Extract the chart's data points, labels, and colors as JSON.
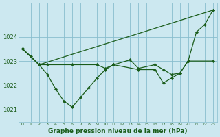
{
  "title": "Graphe pression niveau de la mer (hPa)",
  "background_color": "#cce8f0",
  "grid_color": "#88bece",
  "line_color": "#1a5c1a",
  "xlim": [
    -0.5,
    23.5
  ],
  "ylim": [
    1020.5,
    1025.4
  ],
  "yticks": [
    1021,
    1022,
    1023,
    1024
  ],
  "xticks": [
    0,
    1,
    2,
    3,
    4,
    5,
    6,
    7,
    8,
    9,
    10,
    11,
    12,
    13,
    14,
    15,
    16,
    17,
    18,
    19,
    20,
    21,
    22,
    23
  ],
  "series1_x": [
    0,
    1,
    2,
    23
  ],
  "series1_y": [
    1023.5,
    1023.2,
    1022.85,
    1025.1
  ],
  "series2_x": [
    0,
    2,
    3,
    6,
    9,
    10,
    11,
    13,
    14,
    16,
    17,
    18,
    19,
    20,
    23
  ],
  "series2_y": [
    1023.5,
    1022.85,
    1022.85,
    1022.85,
    1022.85,
    1022.7,
    1022.85,
    1023.05,
    1022.7,
    1022.85,
    1022.65,
    1022.45,
    1022.5,
    1023.0,
    1023.0
  ],
  "series3_x": [
    0,
    2,
    3,
    4,
    5,
    6,
    7,
    8,
    9,
    10,
    11,
    14,
    16,
    17,
    18,
    19,
    20,
    21,
    22,
    23
  ],
  "series3_y": [
    1023.5,
    1022.85,
    1022.45,
    1021.85,
    1021.35,
    1021.1,
    1021.5,
    1021.9,
    1022.3,
    1022.65,
    1022.85,
    1022.65,
    1022.65,
    1022.1,
    1022.3,
    1022.5,
    1023.0,
    1024.2,
    1024.5,
    1025.1
  ]
}
